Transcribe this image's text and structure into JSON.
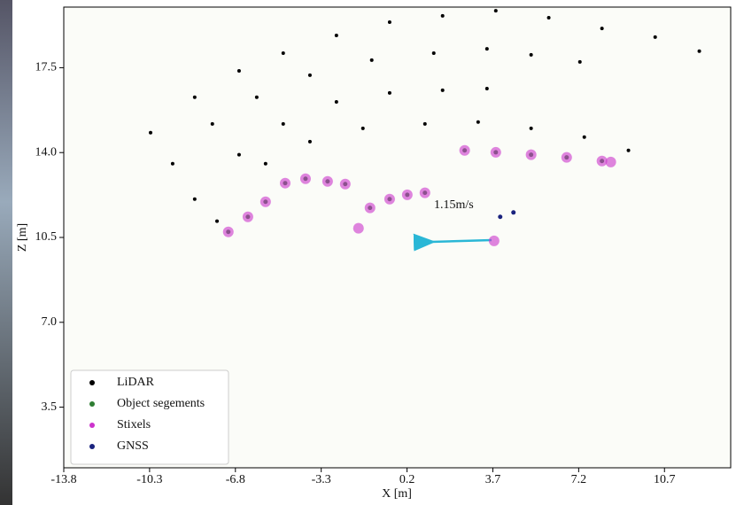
{
  "chart_data": {
    "type": "scatter",
    "xlabel": "X [m]",
    "ylabel": "Z [m]",
    "annotation": "1.15m/s",
    "xlim": [
      -13.8,
      13.4
    ],
    "ylim": [
      1.0,
      20.0
    ],
    "xticks": [
      -13.8,
      -10.3,
      -6.8,
      -3.3,
      0.2,
      3.7,
      7.2,
      10.7
    ],
    "yticks": [
      3.5,
      {
        "value": 7,
        "label": "7.0"
      },
      10.5,
      {
        "value": 14,
        "label": "14.0"
      },
      17.5
    ],
    "legend": "lower left",
    "series": [
      {
        "name": "LiDAR",
        "color": "#000000",
        "x": [
          -10.26,
          -8.46,
          -6.65,
          -4.85,
          -2.68,
          -0.51,
          1.65,
          3.82,
          5.98,
          8.15,
          10.32,
          12.12,
          -9.36,
          -7.74,
          -5.93,
          -3.76,
          -1.24,
          1.29,
          3.46,
          5.26,
          7.25,
          -8.46,
          -6.65,
          -4.85,
          -2.68,
          -0.51,
          1.65,
          3.46,
          -7.55,
          -5.57,
          -3.76,
          -1.6,
          0.93,
          3.1,
          5.26,
          7.43,
          9.23
        ],
        "values": [
          14.82,
          16.28,
          17.37,
          18.1,
          18.83,
          19.38,
          19.64,
          19.85,
          19.56,
          19.12,
          18.76,
          18.18,
          13.54,
          15.18,
          16.28,
          17.19,
          17.81,
          18.1,
          18.28,
          18.03,
          17.74,
          12.08,
          13.91,
          15.18,
          16.09,
          16.46,
          16.57,
          16.64,
          11.17,
          13.54,
          14.45,
          15.0,
          15.18,
          15.26,
          15.0,
          14.64,
          14.09
        ]
      },
      {
        "name": "Object segements",
        "color": "#2e7d32",
        "x": [
          -7.09,
          -6.29,
          -5.57,
          -4.77,
          -3.94,
          -3.04,
          -2.32,
          -1.31,
          -0.51,
          0.21,
          0.93,
          2.55,
          3.82,
          5.26,
          6.71,
          8.15
        ],
        "values": [
          10.73,
          11.35,
          11.97,
          12.74,
          12.92,
          12.81,
          12.7,
          11.72,
          12.08,
          12.26,
          12.34,
          14.09,
          14.01,
          13.91,
          13.8,
          13.65
        ]
      },
      {
        "name": "Stixels",
        "color": "#cc33cc",
        "x": [
          -7.09,
          -6.29,
          -5.57,
          -4.77,
          -3.94,
          -3.04,
          -2.32,
          -1.78,
          -1.31,
          -0.51,
          0.21,
          0.93,
          2.55,
          3.82,
          5.26,
          6.71,
          8.15,
          8.51,
          3.75
        ],
        "values": [
          10.73,
          11.35,
          11.97,
          12.74,
          12.92,
          12.81,
          12.7,
          10.88,
          11.72,
          12.08,
          12.26,
          12.34,
          14.09,
          14.01,
          13.91,
          13.8,
          13.65,
          13.61,
          10.36
        ]
      },
      {
        "name": "GNSS",
        "color": "#1a237e",
        "x": [
          4.0,
          4.54
        ],
        "values": [
          11.35,
          11.53
        ]
      }
    ]
  }
}
